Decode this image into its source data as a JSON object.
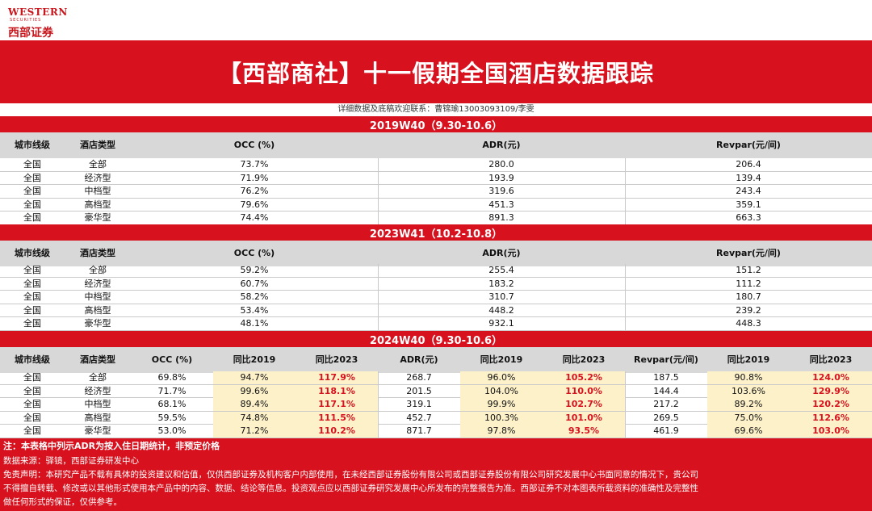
{
  "logo": {
    "en": "WESTERN",
    "en_sub": "SECURITIES",
    "cn": "西部证券"
  },
  "title": "【西部商社】十一假期全国酒店数据跟踪",
  "contact": "详细数据及底稿欢迎联系：曹锦瑜13003093109/李雯",
  "columns_basic": [
    "城市线级",
    "酒店类型",
    "OCC (%)",
    "ADR(元)",
    "Revpar(元/间)"
  ],
  "columns_2024": [
    "城市线级",
    "酒店类型",
    "OCC (%)",
    "同比2019",
    "同比2023",
    "ADR(元)",
    "同比2019",
    "同比2023",
    "Revpar(元/间)",
    "同比2019",
    "同比2023"
  ],
  "section_2019": {
    "title": "2019W40（9.30-10.6）",
    "rows": [
      [
        "全国",
        "全部",
        "73.7%",
        "280.0",
        "206.4"
      ],
      [
        "全国",
        "经济型",
        "71.9%",
        "193.9",
        "139.4"
      ],
      [
        "全国",
        "中档型",
        "76.2%",
        "319.6",
        "243.4"
      ],
      [
        "全国",
        "高档型",
        "79.6%",
        "451.3",
        "359.1"
      ],
      [
        "全国",
        "豪华型",
        "74.4%",
        "891.3",
        "663.3"
      ]
    ]
  },
  "section_2023": {
    "title": "2023W41（10.2-10.8）",
    "rows": [
      [
        "全国",
        "全部",
        "59.2%",
        "255.4",
        "151.2"
      ],
      [
        "全国",
        "经济型",
        "60.7%",
        "183.2",
        "111.2"
      ],
      [
        "全国",
        "中档型",
        "58.2%",
        "310.7",
        "180.7"
      ],
      [
        "全国",
        "高档型",
        "53.4%",
        "448.2",
        "239.2"
      ],
      [
        "全国",
        "豪华型",
        "48.1%",
        "932.1",
        "448.3"
      ]
    ]
  },
  "section_2024": {
    "title": "2024W40（9.30-10.6）",
    "rows": [
      [
        "全国",
        "全部",
        "69.8%",
        "94.7%",
        "117.9%",
        "268.7",
        "96.0%",
        "105.2%",
        "187.5",
        "90.8%",
        "124.0%"
      ],
      [
        "全国",
        "经济型",
        "71.7%",
        "99.6%",
        "118.1%",
        "201.5",
        "104.0%",
        "110.0%",
        "144.4",
        "103.6%",
        "129.9%"
      ],
      [
        "全国",
        "中档型",
        "68.1%",
        "89.4%",
        "117.1%",
        "319.1",
        "99.9%",
        "102.7%",
        "217.2",
        "89.2%",
        "120.2%"
      ],
      [
        "全国",
        "高档型",
        "59.5%",
        "74.8%",
        "111.5%",
        "452.7",
        "100.3%",
        "101.0%",
        "269.5",
        "75.0%",
        "112.6%"
      ],
      [
        "全国",
        "豪华型",
        "53.0%",
        "71.2%",
        "110.2%",
        "871.7",
        "97.8%",
        "93.5%",
        "461.9",
        "69.6%",
        "103.0%"
      ]
    ]
  },
  "note": "注：本表格中列示ADR为按入住日期统计，非预定价格",
  "source": "数据来源：驿镜，西部证券研发中心",
  "disclaimer_1": "免责声明：本研究产品不载有具体的投资建议和估值，仅供西部证券及机构客户内部使用，在未经西部证券股份有限公司或西部证券股份有限公司研究发展中心书面同意的情况下，贵公司",
  "disclaimer_2": "不得擅自转载、修改或以其他形式使用本产品中的内容、数据、结论等信息。投资观点应以西部证券研究发展中心所发布的完整报告为准。西部证券不对本图表所载资料的准确性及完整性",
  "disclaimer_3": "做任何形式的保证，仅供参考。",
  "colors": {
    "brand_red": "#d7121e",
    "highlight": "#fdf1c9",
    "header_gray": "#d8d8d8"
  }
}
